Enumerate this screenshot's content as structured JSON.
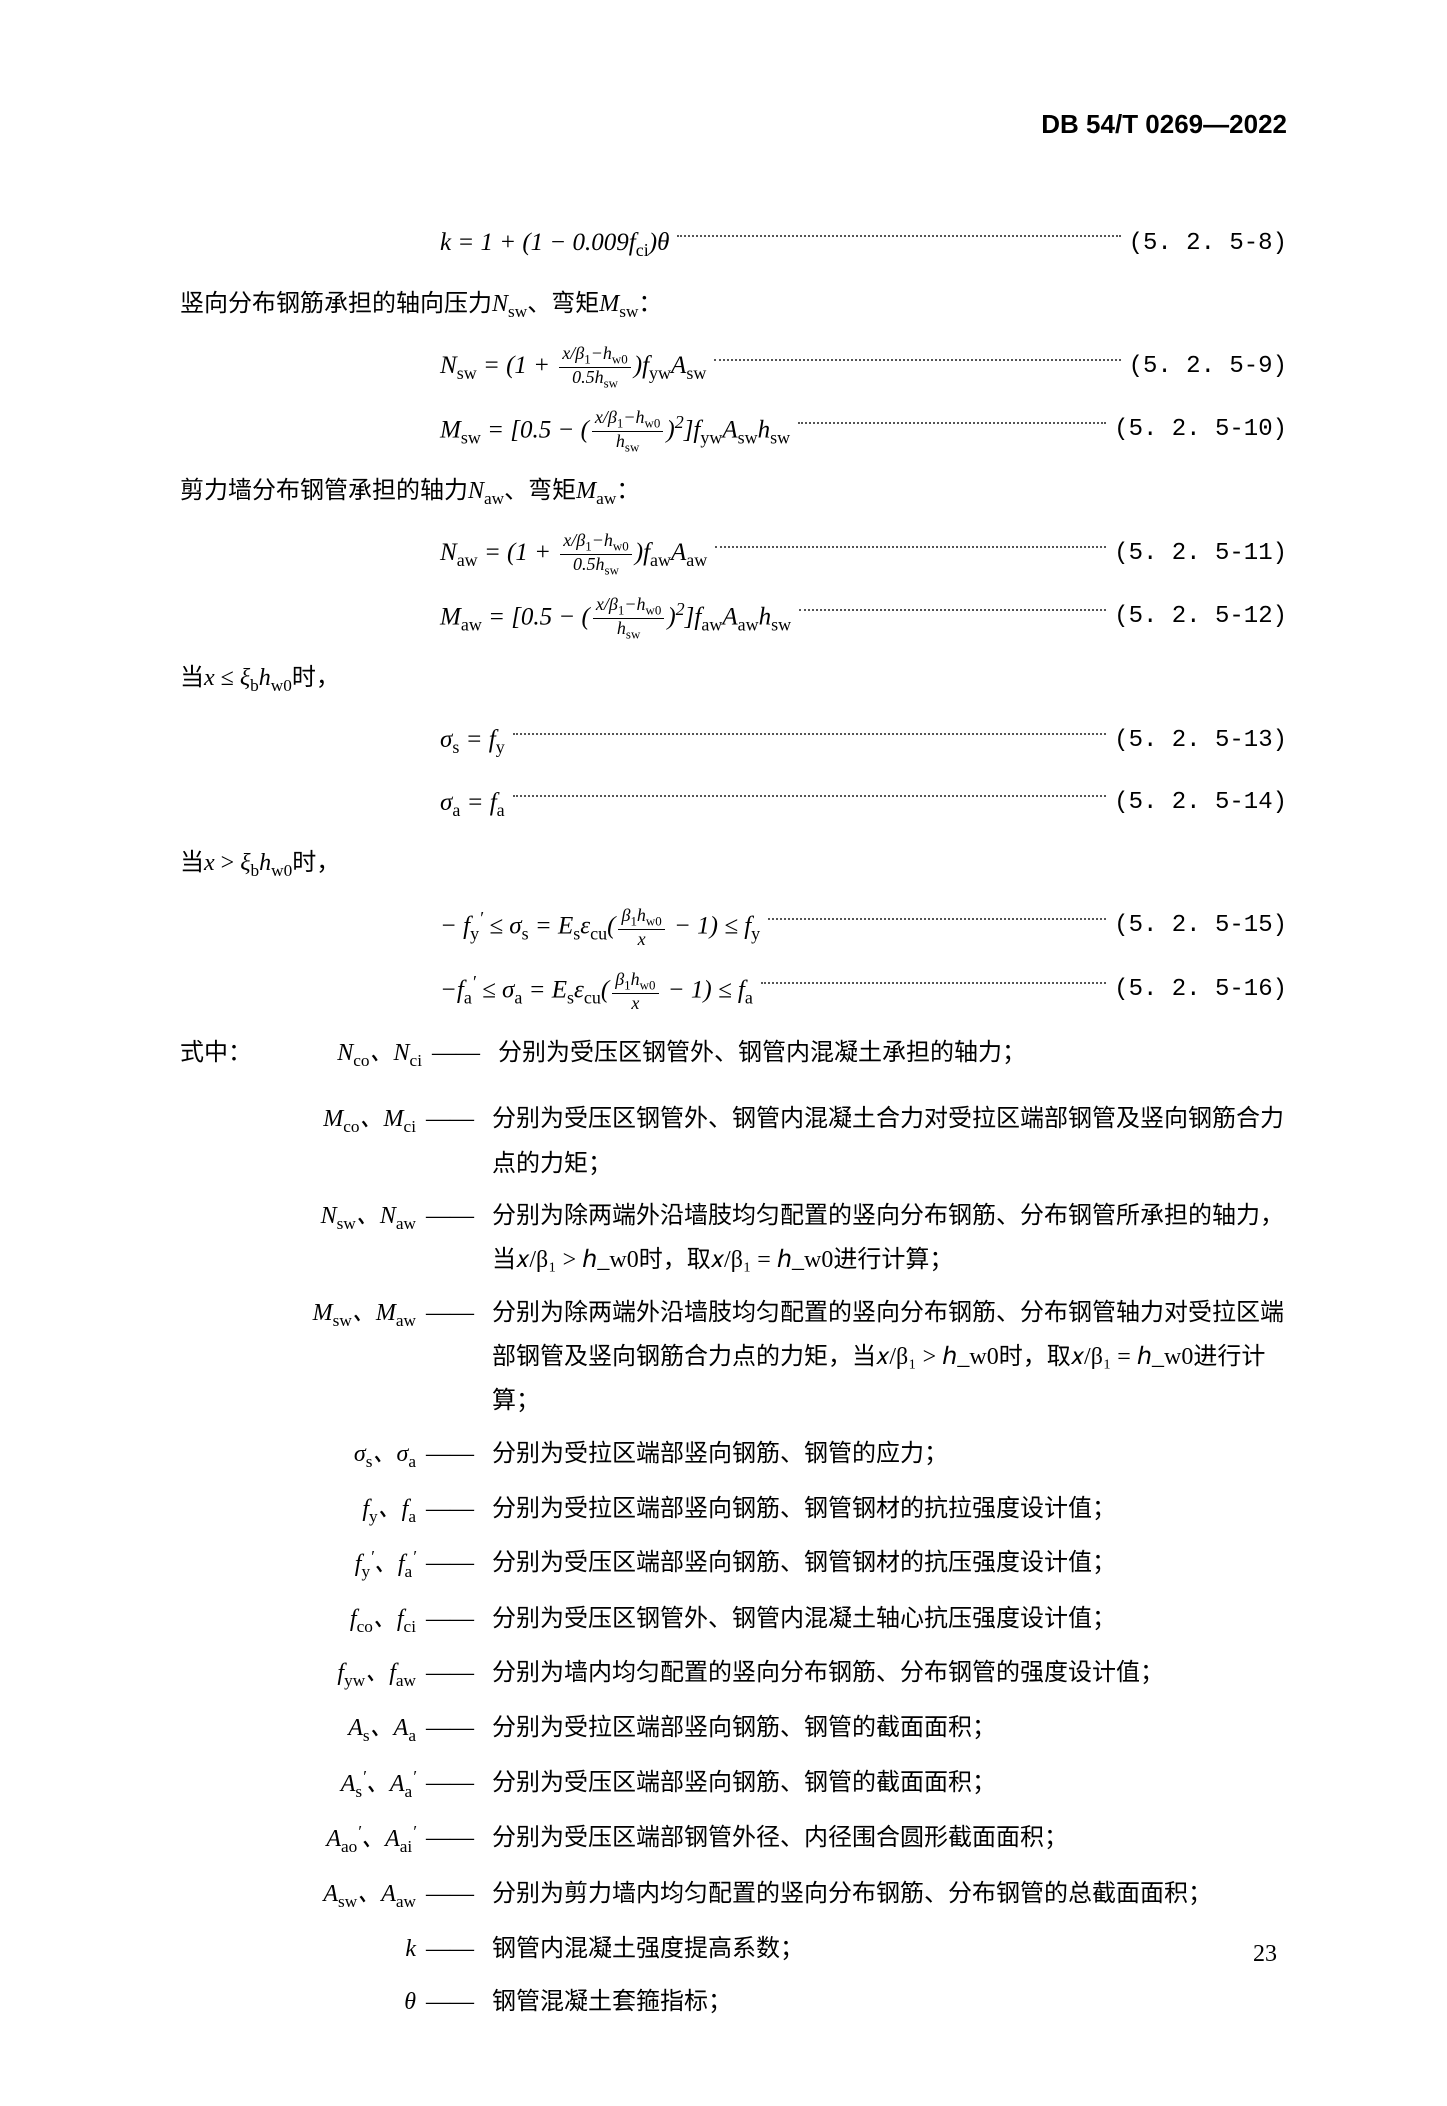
{
  "header": {
    "code": "DB 54/T 0269—2022"
  },
  "equations": [
    {
      "id": "e8",
      "formula_html": "<i>k</i> = 1 + (1 − 0.009<i>f</i><sub>ci</sub>)<i>θ</i>",
      "num": "(5. 2. 5-8)"
    },
    {
      "id": "e9",
      "formula_html": "<i>N</i><sub>sw</sub> = (1 + <span class='frac'><span class='num'><i>x</i>/<i>β</i><sub>1</sub>−<i>h</i><sub>w0</sub></span><span class='den'>0.5<i>h</i><sub>sw</sub></span></span>)<i>f</i><sub>yw</sub><i>A</i><sub>sw</sub>",
      "num": "(5. 2. 5-9)"
    },
    {
      "id": "e10",
      "formula_html": "<i>M</i><sub>sw</sub> = [0.5 − (<span class='frac'><span class='num'><i>x</i>/<i>β</i><sub>1</sub>−<i>h</i><sub>w0</sub></span><span class='den'><i>h</i><sub>sw</sub></span></span>)<sup>2</sup>]<i>f</i><sub>yw</sub><i>A</i><sub>sw</sub><i>h</i><sub>sw</sub>",
      "num": "(5. 2. 5-10)"
    },
    {
      "id": "e11",
      "formula_html": "<i>N</i><sub>aw</sub> = (1 + <span class='frac'><span class='num'><i>x</i>/<i>β</i><sub>1</sub>−<i>h</i><sub>w0</sub></span><span class='den'>0.5<i>h</i><sub>sw</sub></span></span>)<i>f</i><sub>aw</sub><i>A</i><sub>aw</sub>",
      "num": "(5. 2. 5-11)"
    },
    {
      "id": "e12",
      "formula_html": "<i>M</i><sub>aw</sub> = [0.5 − (<span class='frac'><span class='num'><i>x</i>/<i>β</i><sub>1</sub>−<i>h</i><sub>w0</sub></span><span class='den'><i>h</i><sub>sw</sub></span></span>)<sup>2</sup>]<i>f</i><sub>aw</sub><i>A</i><sub>aw</sub><i>h</i><sub>sw</sub>",
      "num": "(5. 2. 5-12)"
    },
    {
      "id": "e13",
      "formula_html": "<i>σ</i><sub>s</sub> = <i>f</i><sub>y</sub>",
      "num": "(5. 2. 5-13)"
    },
    {
      "id": "e14",
      "formula_html": "<i>σ</i><sub>a</sub> = <i>f</i><sub>a</sub>",
      "num": "(5. 2. 5-14)"
    },
    {
      "id": "e15",
      "formula_html": "− <i>f</i><sub>y</sub><sup>′</sup> ≤ <i>σ</i><sub>s</sub> = <i>E</i><sub>s</sub><i>ε</i><sub>cu</sub>(<span class='frac'><span class='num'><i>β</i><sub>1</sub><i>h</i><sub>w0</sub></span><span class='den'><i>x</i></span></span> − 1) ≤ <i>f</i><sub>y</sub>",
      "num": "(5. 2. 5-15)"
    },
    {
      "id": "e16",
      "formula_html": "−<i>f</i><sub>a</sub><sup>′</sup> ≤ <i>σ</i><sub>a</sub> = <i>E</i><sub>s</sub><i>ε</i><sub>cu</sub>(<span class='frac'><span class='num'><i>β</i><sub>1</sub><i>h</i><sub>w0</sub></span><span class='den'><i>x</i></span></span> − 1) ≤ <i>f</i><sub>a</sub>",
      "num": "(5. 2. 5-16)"
    }
  ],
  "paras": {
    "p1": "竖向分布钢筋承担的轴向压力𝑁ₛw、弯矩𝑀ₛw：",
    "p2": "剪力墙分布钢管承担的轴力𝑁ₐw、弯矩𝑀ₐw：",
    "p3": "当𝑥 ≤ ξ_b ℎ_w0时，",
    "p4": "当𝑥 > ξ_b ℎ_w0时，"
  },
  "def_label": "式中：",
  "defs": [
    {
      "sym": "<i>N</i><sub>co</sub>、<i>N</i><sub>ci</sub>",
      "txt": "分别为受压区钢管外、钢管内混凝土承担的轴力；"
    },
    {
      "sym": "<i>M</i><sub>co</sub>、<i>M</i><sub>ci</sub>",
      "txt": "分别为受压区钢管外、钢管内混凝土合力对受拉区端部钢管及竖向钢筋合力点的力矩；"
    },
    {
      "sym": "<i>N</i><sub>sw</sub>、<i>N</i><sub>aw</sub>",
      "txt": "分别为除两端外沿墙肢均匀配置的竖向分布钢筋、分布钢管所承担的轴力，当𝑥/β₁ > ℎ_w0时，取𝑥/β₁ = ℎ_w0进行计算；"
    },
    {
      "sym": "<i>M</i><sub>sw</sub>、<i>M</i><sub>aw</sub>",
      "txt": "分别为除两端外沿墙肢均匀配置的竖向分布钢筋、分布钢管轴力对受拉区端部钢管及竖向钢筋合力点的力矩，当𝑥/β₁ > ℎ_w0时，取𝑥/β₁ = ℎ_w0进行计算；"
    },
    {
      "sym": "<i>σ</i><sub>s</sub>、<i>σ</i><sub>a</sub>",
      "txt": "分别为受拉区端部竖向钢筋、钢管的应力；"
    },
    {
      "sym": "<i>f</i><sub>y</sub>、<i>f</i><sub>a</sub>",
      "txt": "分别为受拉区端部竖向钢筋、钢管钢材的抗拉强度设计值；"
    },
    {
      "sym": "<i>f</i><sub>y</sub><sup>′</sup>、<i>f</i><sub>a</sub><sup>′</sup>",
      "txt": "分别为受压区端部竖向钢筋、钢管钢材的抗压强度设计值；"
    },
    {
      "sym": "<i>f</i><sub>co</sub>、<i>f</i><sub>ci</sub>",
      "txt": "分别为受压区钢管外、钢管内混凝土轴心抗压强度设计值；"
    },
    {
      "sym": "<i>f</i><sub>yw</sub>、<i>f</i><sub>aw</sub>",
      "txt": "分别为墙内均匀配置的竖向分布钢筋、分布钢管的强度设计值；"
    },
    {
      "sym": "<i>A</i><sub>s</sub>、<i>A</i><sub>a</sub>",
      "txt": "分别为受拉区端部竖向钢筋、钢管的截面面积；"
    },
    {
      "sym": "<i>A</i><sub>s</sub><sup>′</sup>、<i>A</i><sub>a</sub><sup>′</sup>",
      "txt": "分别为受压区端部竖向钢筋、钢管的截面面积；"
    },
    {
      "sym": "<i>A</i><sub>ao</sub><sup>′</sup>、<i>A</i><sub>ai</sub><sup>′</sup>",
      "txt": "分别为受压区端部钢管外径、内径围合圆形截面面积；"
    },
    {
      "sym": "<i>A</i><sub>sw</sub>、<i>A</i><sub>aw</sub>",
      "txt": "分别为剪力墙内均匀配置的竖向分布钢筋、分布钢管的总截面面积；"
    },
    {
      "sym": "<i>k</i>",
      "txt": "钢管内混凝土强度提高系数；"
    },
    {
      "sym": "<i>θ</i>",
      "txt": "钢管混凝土套箍指标；"
    }
  ],
  "page_number": "23"
}
